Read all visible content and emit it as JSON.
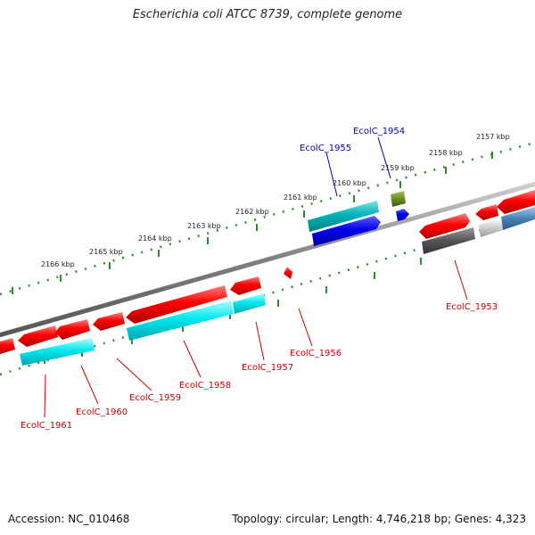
{
  "title": "Escherichia coli ATCC 8739, complete genome",
  "footer": {
    "accession": "Accession: NC_010468",
    "summary": "Topology: circular; Length: 4,746,218 bp; Genes: 4,323"
  },
  "ticks": [
    "2157 kbp",
    "2158 kbp",
    "2159 kbp",
    "2160 kbp",
    "2161 kbp",
    "2162 kbp",
    "2163 kbp",
    "2164 kbp",
    "2165 kbp",
    "2166 kbp"
  ],
  "gene_labels": [
    "EcolC_1954",
    "EcolC_1955",
    "EcolC_1953",
    "EcolC_1956",
    "EcolC_1957",
    "EcolC_1958",
    "EcolC_1959",
    "EcolC_1960",
    "EcolC_1961"
  ],
  "colors": {
    "backbone": "#8a8a8a",
    "tick_track": "#2e8b2e",
    "cds_forward": "#ff0000",
    "cds_reverse_match": "#00e5ee",
    "label_blue": "#0000aa",
    "label_red": "#cc0000"
  }
}
